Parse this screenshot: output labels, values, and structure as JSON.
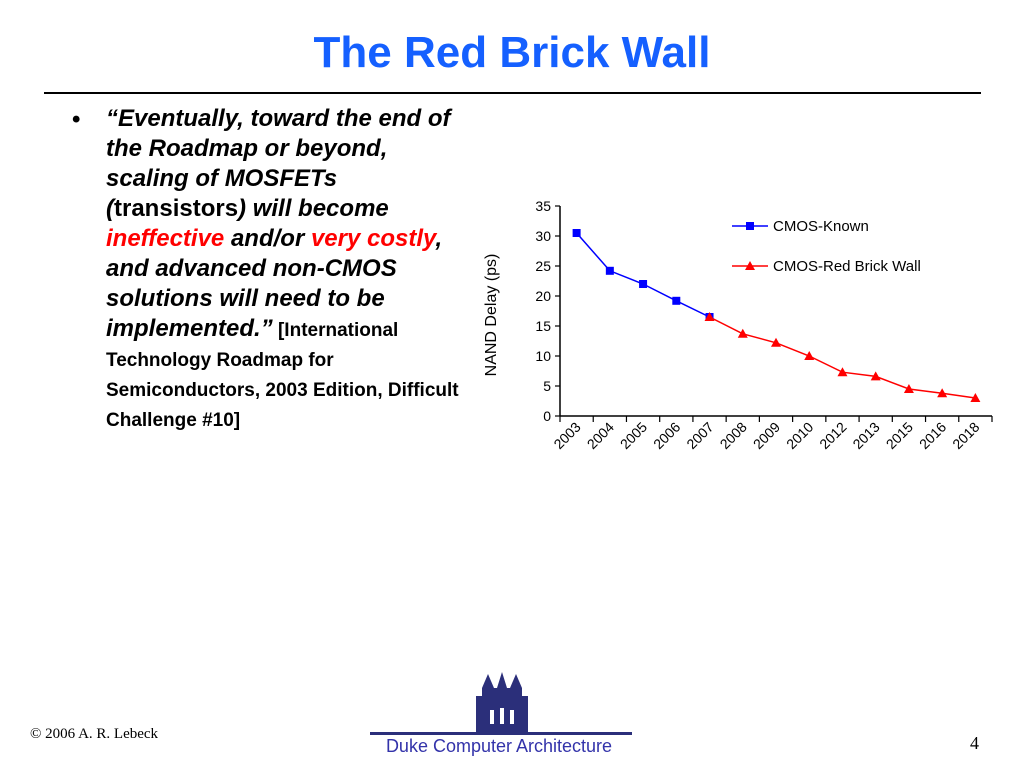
{
  "slide": {
    "title": "The Red Brick Wall",
    "bullet": {
      "marker": "•",
      "quote_open": "“Eventually, toward the end of the Roadmap or beyond, scaling of MOSFETs (",
      "quote_paren_word": "transistors",
      "quote_mid1": ") will become ",
      "highlight_1": "ineffective",
      "quote_mid2": " and/or ",
      "highlight_2": "very costly",
      "quote_close": ", and advanced non-CMOS solutions will need to be implemented.”",
      "citation": " [International Technology Roadmap for Semiconductors, 2003 Edition, Difficult Challenge #10]"
    }
  },
  "chart_data": {
    "type": "line",
    "title": "",
    "xlabel": "",
    "ylabel": "NAND Delay (ps)",
    "categories": [
      "2003",
      "2004",
      "2005",
      "2006",
      "2007",
      "2008",
      "2009",
      "2010",
      "2012",
      "2013",
      "2015",
      "2016",
      "2018"
    ],
    "ylim": [
      0,
      35
    ],
    "yticks": [
      "0",
      "5",
      "10",
      "15",
      "20",
      "25",
      "30",
      "35"
    ],
    "grid": false,
    "legend_position": "top-right",
    "series": [
      {
        "name": "CMOS-Known",
        "color": "#0000ff",
        "marker": "square",
        "values": [
          30.5,
          24.2,
          22.0,
          19.2,
          16.5,
          null,
          null,
          null,
          null,
          null,
          null,
          null,
          null
        ]
      },
      {
        "name": "CMOS-Red Brick Wall",
        "color": "#ff0000",
        "marker": "triangle",
        "values": [
          null,
          null,
          null,
          null,
          16.5,
          13.7,
          12.2,
          10.0,
          7.3,
          6.6,
          4.5,
          3.8,
          3.0
        ]
      }
    ]
  },
  "footer": {
    "copyright": "© 2006 A. R. Lebeck",
    "label": "Duke Computer Architecture",
    "page_number": "4",
    "logo_color": "#2b2f7a"
  }
}
